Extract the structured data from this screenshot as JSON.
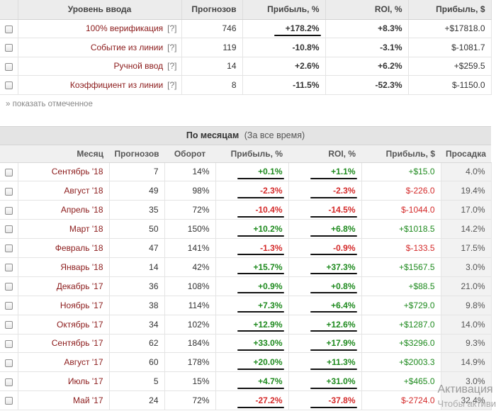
{
  "input_table": {
    "headers": {
      "level": "Уровень ввода",
      "forecasts": "Прогнозов",
      "profit_pct": "Прибыль, %",
      "roi": "ROI, %",
      "profit_usd": "Прибыль, $"
    },
    "help_mark": "[?]",
    "rows": [
      {
        "name": "100% верификация",
        "forecasts": "746",
        "profit_pct": "+178.2%",
        "roi": "+8.3%",
        "profit_usd": "+$17818.0"
      },
      {
        "name": "Событие из линии",
        "forecasts": "119",
        "profit_pct": "-10.8%",
        "roi": "-3.1%",
        "profit_usd": "$-1081.7"
      },
      {
        "name": "Ручной ввод",
        "forecasts": "14",
        "profit_pct": "+2.6%",
        "roi": "+6.2%",
        "profit_usd": "+$259.5"
      },
      {
        "name": "Коэффициент из линии",
        "forecasts": "8",
        "profit_pct": "-11.5%",
        "roi": "-52.3%",
        "profit_usd": "$-1150.0"
      }
    ],
    "show_selected": "» показать отмеченное"
  },
  "monthly": {
    "title": "По месяцам",
    "subtitle": "(За все время)",
    "headers": {
      "month": "Месяц",
      "forecasts": "Прогнозов",
      "turnover": "Оборот",
      "profit_pct": "Прибыль, %",
      "roi": "ROI, %",
      "profit_usd": "Прибыль, $",
      "drawdown": "Просадка"
    },
    "rows": [
      {
        "month": "Сентябрь '18",
        "forecasts": "7",
        "turnover": "14%",
        "profit_pct": "+0.1%",
        "roi": "+1.1%",
        "profit_usd": "+$15.0",
        "drawdown": "4.0%"
      },
      {
        "month": "Август '18",
        "forecasts": "49",
        "turnover": "98%",
        "profit_pct": "-2.3%",
        "roi": "-2.3%",
        "profit_usd": "$-226.0",
        "drawdown": "19.4%"
      },
      {
        "month": "Апрель '18",
        "forecasts": "35",
        "turnover": "72%",
        "profit_pct": "-10.4%",
        "roi": "-14.5%",
        "profit_usd": "$-1044.0",
        "drawdown": "17.0%"
      },
      {
        "month": "Март '18",
        "forecasts": "50",
        "turnover": "150%",
        "profit_pct": "+10.2%",
        "roi": "+6.8%",
        "profit_usd": "+$1018.5",
        "drawdown": "14.2%"
      },
      {
        "month": "Февраль '18",
        "forecasts": "47",
        "turnover": "141%",
        "profit_pct": "-1.3%",
        "roi": "-0.9%",
        "profit_usd": "$-133.5",
        "drawdown": "17.5%"
      },
      {
        "month": "Январь '18",
        "forecasts": "14",
        "turnover": "42%",
        "profit_pct": "+15.7%",
        "roi": "+37.3%",
        "profit_usd": "+$1567.5",
        "drawdown": "3.0%"
      },
      {
        "month": "Декабрь '17",
        "forecasts": "36",
        "turnover": "108%",
        "profit_pct": "+0.9%",
        "roi": "+0.8%",
        "profit_usd": "+$88.5",
        "drawdown": "21.0%"
      },
      {
        "month": "Ноябрь '17",
        "forecasts": "38",
        "turnover": "114%",
        "profit_pct": "+7.3%",
        "roi": "+6.4%",
        "profit_usd": "+$729.0",
        "drawdown": "9.8%"
      },
      {
        "month": "Октябрь '17",
        "forecasts": "34",
        "turnover": "102%",
        "profit_pct": "+12.9%",
        "roi": "+12.6%",
        "profit_usd": "+$1287.0",
        "drawdown": "14.0%"
      },
      {
        "month": "Сентябрь '17",
        "forecasts": "62",
        "turnover": "184%",
        "profit_pct": "+33.0%",
        "roi": "+17.9%",
        "profit_usd": "+$3296.0",
        "drawdown": "9.3%"
      },
      {
        "month": "Август '17",
        "forecasts": "60",
        "turnover": "178%",
        "profit_pct": "+20.0%",
        "roi": "+11.3%",
        "profit_usd": "+$2003.3",
        "drawdown": "14.9%"
      },
      {
        "month": "Июль '17",
        "forecasts": "5",
        "turnover": "15%",
        "profit_pct": "+4.7%",
        "roi": "+31.0%",
        "profit_usd": "+$465.0",
        "drawdown": "3.0%"
      },
      {
        "month": "Май '17",
        "forecasts": "24",
        "turnover": "72%",
        "profit_pct": "-27.2%",
        "roi": "-37.8%",
        "profit_usd": "$-2724.0",
        "drawdown": "32.4%"
      }
    ]
  },
  "watermark": {
    "line1": "Активация",
    "line2": "Чтобы активи"
  },
  "colors": {
    "positive": "#1e8a1e",
    "negative": "#d42a2a",
    "name_text": "#8b1a1a",
    "header_bg": "#ececec"
  }
}
